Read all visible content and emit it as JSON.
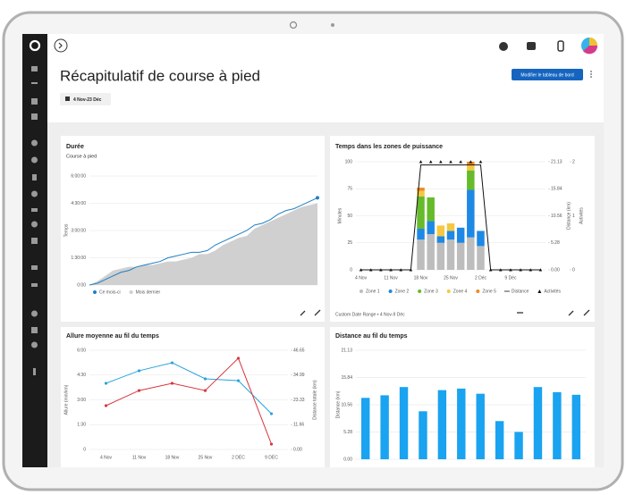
{
  "header": {
    "title": "Récapitulatif de course à pied",
    "date_range": "4 Nov-23 Déc",
    "edit_button": "Modifier le tableau de bord"
  },
  "chart_data": [
    {
      "type": "line",
      "title": "Durée",
      "subtitle": "Course à pied",
      "y_label": "Temps",
      "ylim": [
        0,
        6
      ],
      "yticks": [
        {
          "value": 0,
          "label": "0:00"
        },
        {
          "value": 1.5,
          "label": "1:30:00"
        },
        {
          "value": 3,
          "label": "3:00:00"
        },
        {
          "value": 4.5,
          "label": "4:30:00"
        },
        {
          "value": 6,
          "label": "6:00:00"
        }
      ],
      "series": [
        {
          "name": "Ce mois-ci",
          "color": "#1f7fc4",
          "kind": "line",
          "values": [
            0,
            0.1,
            0.3,
            0.5,
            0.7,
            0.8,
            1.0,
            1.1,
            1.2,
            1.3,
            1.5,
            1.6,
            1.7,
            1.8,
            1.8,
            1.9,
            2.2,
            2.4,
            2.6,
            2.8,
            3.0,
            3.3,
            3.4,
            3.6,
            3.9,
            4.1,
            4.2,
            4.4,
            4.6,
            4.8
          ]
        },
        {
          "name": "Mois dernier",
          "color": "#d0d0d0",
          "kind": "area",
          "values": [
            0,
            0.2,
            0.5,
            0.8,
            0.9,
            1.0,
            1.0,
            1.1,
            1.1,
            1.2,
            1.3,
            1.3,
            1.4,
            1.5,
            1.7,
            1.7,
            1.9,
            2.2,
            2.4,
            2.6,
            2.7,
            3.1,
            3.3,
            3.5,
            3.7,
            3.9,
            4.1,
            4.3,
            4.4,
            4.5
          ]
        }
      ]
    },
    {
      "type": "stacked_bar",
      "title": "Temps dans les zones de puissance",
      "y_label": "Minutes",
      "y2_label": "Distance (km)",
      "y3_label": "Activités",
      "footer": "Custom Date Range • 4 Nov-9 Déc",
      "categories": [
        "4 Nov",
        null,
        null,
        "11 Nov",
        null,
        null,
        "18 Nov",
        null,
        null,
        "25 Nov",
        null,
        null,
        "2 Déc",
        null,
        null,
        "9 Déc",
        null,
        null,
        null
      ],
      "ylim": [
        0,
        100
      ],
      "yticks": [
        0,
        25,
        50,
        75,
        100
      ],
      "y2lim": [
        0,
        21.13
      ],
      "y2ticks": [
        {
          "value": 0,
          "label": "0.00"
        },
        5.28,
        10.56,
        15.84,
        21.13
      ],
      "y3lim": [
        0,
        2
      ],
      "y3ticks": [
        0,
        1,
        2
      ],
      "series": [
        {
          "name": "Zone 1",
          "color": "#bdbdbd",
          "values": [
            0,
            0,
            0,
            0,
            0,
            0,
            28,
            33,
            25,
            28,
            25,
            30,
            22,
            0,
            0,
            0,
            0,
            0,
            0
          ]
        },
        {
          "name": "Zone 2",
          "color": "#1e88e5",
          "values": [
            0,
            0,
            0,
            0,
            0,
            0,
            10,
            12,
            6,
            8,
            14,
            44,
            14,
            0,
            0,
            0,
            0,
            0,
            0
          ]
        },
        {
          "name": "Zone 3",
          "color": "#66bb2a",
          "values": [
            0,
            0,
            0,
            0,
            0,
            0,
            30,
            22,
            0,
            0,
            0,
            18,
            0,
            0,
            0,
            0,
            0,
            0,
            0
          ]
        },
        {
          "name": "Zone 4",
          "color": "#f5c842",
          "values": [
            0,
            0,
            0,
            0,
            0,
            0,
            5,
            0,
            10,
            7,
            0,
            5,
            0,
            0,
            0,
            0,
            0,
            0,
            0
          ]
        },
        {
          "name": "Zone 5",
          "color": "#f08a24",
          "values": [
            0,
            0,
            0,
            0,
            0,
            0,
            3,
            0,
            0,
            0,
            0,
            3,
            0,
            0,
            0,
            0,
            0,
            0,
            0
          ]
        },
        {
          "name": "Distance",
          "color": "#111111",
          "axis": "y2",
          "kind": "line",
          "values": [
            0,
            0,
            0,
            0,
            0,
            0,
            20.5,
            20.5,
            20.5,
            20.5,
            20.5,
            20.5,
            20.5,
            0,
            0,
            0,
            0,
            0,
            0
          ]
        },
        {
          "name": "Activités",
          "color": "#111111",
          "axis": "y3",
          "kind": "triangle",
          "values": [
            0,
            0,
            0,
            0,
            0,
            0,
            2,
            2,
            2,
            2,
            2,
            2,
            2,
            0,
            0,
            0,
            0,
            0,
            0
          ]
        }
      ]
    },
    {
      "type": "line",
      "title": "Allure moyenne au fil du temps",
      "y_label": "Allure (min/km)",
      "y2_label": "Distance totale (km)",
      "categories": [
        "4 Nov",
        "11 Nov",
        "18 Nov",
        "25 Nov",
        "2 DÉC",
        "9 DÉC"
      ],
      "ylim": [
        0,
        6
      ],
      "yticks": [
        0,
        {
          "value": 1.5,
          "label": "1:30"
        },
        {
          "value": 3,
          "label": "3:00"
        },
        {
          "value": 4.5,
          "label": "4:30"
        },
        {
          "value": 6,
          "label": "6:00"
        }
      ],
      "y2lim": [
        0,
        46.65
      ],
      "y2ticks": [
        {
          "value": 0,
          "label": "0.00"
        },
        11.66,
        23.33,
        34.99,
        46.65
      ],
      "series": [
        {
          "name": "Allure",
          "color": "#29a3dc",
          "kind": "line",
          "values": [
            4.0,
            4.76,
            5.24,
            4.27,
            4.16,
            2.16
          ]
        },
        {
          "name": "Distance totale",
          "color": "#d9363e",
          "kind": "line",
          "axis": "y2",
          "values": [
            20.6,
            27.7,
            31.1,
            27.7,
            42.9,
            2.5
          ]
        }
      ]
    },
    {
      "type": "bar",
      "title": "Distance au fil du temps",
      "y_label": "Distance (km)",
      "ylim": [
        0,
        21.13
      ],
      "yticks": [
        {
          "value": 0,
          "label": "0.00"
        },
        5.28,
        10.56,
        15.84,
        21.13
      ],
      "color": "#1aa3f0",
      "values": [
        11.9,
        12.4,
        14.0,
        9.3,
        13.4,
        13.7,
        12.7,
        7.4,
        5.3,
        14.0,
        13.0,
        12.5
      ]
    }
  ]
}
